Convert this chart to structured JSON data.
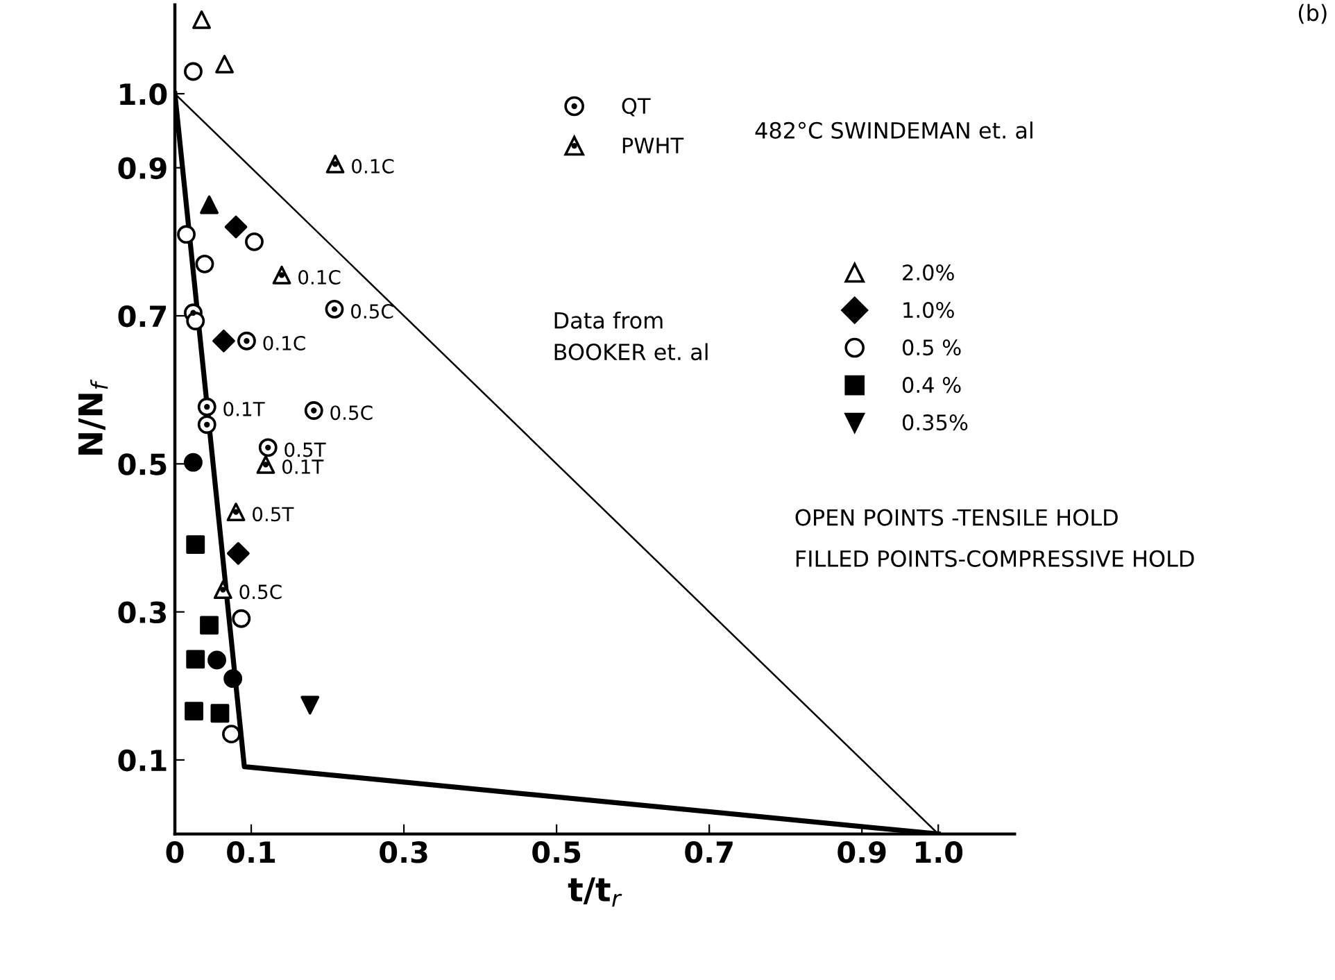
{
  "chart_data": {
    "type": "scatter",
    "xlabel": "t/t$_{r}$",
    "ylabel": "N/N$_{f}$",
    "xlim": [
      0,
      1.1
    ],
    "ylim": [
      0,
      1.12
    ],
    "xticks": [
      0,
      0.1,
      0.3,
      0.5,
      0.7,
      0.9,
      {
        "value": 1.0,
        "label": "1.0"
      }
    ],
    "yticks": [
      0.1,
      0.3,
      0.5,
      0.7,
      0.9,
      {
        "value": 1.0,
        "label": "1.0"
      }
    ],
    "grid": false,
    "legend": "top right",
    "annotations": [
      "482°C SWINDEMAN et. al",
      "Data from\nBOOKER et. al",
      "OPEN POINTS -TENSILE HOLD",
      "FILLED POINTS-COMPRESSIVE HOLD",
      "(b)",
      {
        "text": "0.5C",
        "x": 0.209,
        "y": 0.709
      },
      {
        "text": "0.1C",
        "x": 0.094,
        "y": 0.666
      },
      {
        "text": "0.1T",
        "x": 0.042,
        "y": 0.577
      },
      {
        "text": "0.5C",
        "x": 0.182,
        "y": 0.572
      },
      {
        "text": "0.5T",
        "x": 0.122,
        "y": 0.522
      },
      {
        "text": "0.1C",
        "x": 0.21,
        "y": 0.905
      },
      {
        "text": "0.1C",
        "x": 0.14,
        "y": 0.755
      },
      {
        "text": "0.1T",
        "x": 0.119,
        "y": 0.499
      },
      {
        "text": "0.5T",
        "x": 0.08,
        "y": 0.435
      },
      {
        "text": "0.5C",
        "x": 0.063,
        "y": 0.33
      }
    ],
    "series": [
      {
        "name": "QT",
        "marker": "circle_dot",
        "color": "#000000",
        "x": [
          0.209,
          0.024,
          0.094,
          0.042,
          0.042,
          0.182,
          0.122
        ],
        "values": [
          0.709,
          0.704,
          0.666,
          0.577,
          0.553,
          0.572,
          0.522
        ],
        "colors": [
          "#ffffff",
          "#ffffff",
          "#ffffff",
          "#ffffff",
          "#ffffff",
          "#ffffff",
          "#ffffff"
        ]
      },
      {
        "name": "PWHT",
        "marker": "triangle_dot",
        "color": "#000000",
        "x": [
          0.21,
          0.14,
          0.119,
          0.08,
          0.063
        ],
        "values": [
          0.905,
          0.755,
          0.499,
          0.435,
          0.33
        ],
        "colors": [
          "#ffffff",
          "#ffffff",
          "#ffffff",
          "#ffffff",
          "#ffffff"
        ]
      },
      {
        "name": "2.0%",
        "marker": "triangle",
        "color": "#000000",
        "x": [
          0.035,
          0.065,
          0.045
        ],
        "values": [
          1.1,
          1.04,
          0.85
        ],
        "colors": [
          "#ffffff",
          "#ffffff",
          "#000000"
        ]
      },
      {
        "name": "1.0%",
        "marker": "diamond",
        "color": "#000000",
        "x": [
          0.08,
          0.064,
          0.083
        ],
        "values": [
          0.82,
          0.666,
          0.379
        ],
        "colors": [
          "#000000",
          "#000000",
          "#000000"
        ]
      },
      {
        "name": "0.5 %",
        "marker": "circle",
        "color": "#000000",
        "x": [
          0.024,
          0.015,
          0.104,
          0.039,
          0.027,
          0.087,
          0.074,
          0.024,
          0.055,
          0.076
        ],
        "values": [
          1.03,
          0.81,
          0.8,
          0.77,
          0.693,
          0.291,
          0.135,
          0.502,
          0.235,
          0.21
        ],
        "colors": [
          "#ffffff",
          "#ffffff",
          "#ffffff",
          "#ffffff",
          "#ffffff",
          "#ffffff",
          "#ffffff",
          "#000000",
          "#000000",
          "#000000"
        ]
      },
      {
        "name": "0.4 %",
        "marker": "square",
        "color": "#000000",
        "x": [
          0.027,
          0.045,
          0.027,
          0.025,
          0.059
        ],
        "values": [
          0.391,
          0.282,
          0.236,
          0.166,
          0.163
        ],
        "colors": [
          "#000000",
          "#000000",
          "#000000",
          "#000000",
          "#000000"
        ]
      },
      {
        "name": "0.35%",
        "marker": "triangle_down",
        "color": "#000000",
        "x": [
          0.177
        ],
        "values": [
          0.174
        ],
        "colors": [
          "#000000"
        ]
      },
      {
        "type": "line",
        "color": "#000000",
        "line_style": "solid",
        "x": [
          0,
          1.0
        ],
        "values": [
          1.0,
          0
        ]
      },
      {
        "type": "line",
        "color": "#000000",
        "line_style": "solid",
        "x": [
          0,
          0.091,
          1.0
        ],
        "values": [
          1.0,
          0.091,
          0
        ]
      }
    ]
  }
}
